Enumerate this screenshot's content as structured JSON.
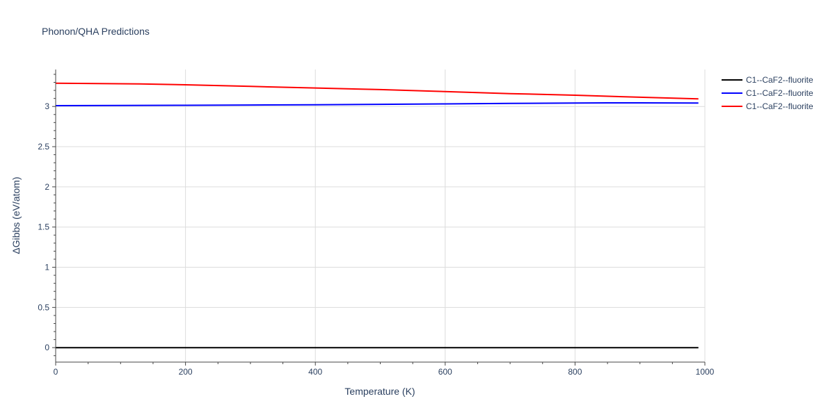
{
  "chart_data": {
    "type": "line",
    "title": "Phonon/QHA Predictions",
    "xlabel": "Temperature (K)",
    "ylabel": "ΔGibbs (eV/atom)",
    "xlim": [
      0,
      1000
    ],
    "ylim": [
      -0.18,
      3.46
    ],
    "xticks": [
      0,
      200,
      400,
      600,
      800,
      1000
    ],
    "xtick_labels": [
      "0",
      "200",
      "400",
      "600",
      "800",
      "1000"
    ],
    "yticks": [
      0,
      0.5,
      1,
      1.5,
      2,
      2.5,
      3
    ],
    "ytick_labels": [
      "0",
      "0.5",
      "1",
      "1.5",
      "2",
      "2.5",
      "3"
    ],
    "grid": true,
    "legend_position": "top-right",
    "series": [
      {
        "name": "C1--CaF2--fluorite",
        "color": "#000000",
        "x": [
          0,
          100,
          200,
          300,
          400,
          500,
          600,
          700,
          800,
          900,
          990
        ],
        "y": [
          0,
          0,
          0,
          0,
          0,
          0,
          0,
          0,
          0,
          0,
          0
        ]
      },
      {
        "name": "C1--CaF2--fluorite",
        "color": "#0000ff",
        "x": [
          0,
          100,
          200,
          300,
          400,
          500,
          600,
          700,
          800,
          850,
          900,
          990
        ],
        "y": [
          3.01,
          3.012,
          3.015,
          3.018,
          3.022,
          3.027,
          3.032,
          3.038,
          3.043,
          3.045,
          3.045,
          3.043
        ]
      },
      {
        "name": "C1--CaF2--fluorite",
        "color": "#ff0000",
        "x": [
          0,
          130,
          200,
          300,
          400,
          500,
          600,
          700,
          800,
          900,
          990
        ],
        "y": [
          3.29,
          3.28,
          3.27,
          3.25,
          3.23,
          3.21,
          3.185,
          3.16,
          3.14,
          3.115,
          3.095
        ]
      }
    ]
  }
}
